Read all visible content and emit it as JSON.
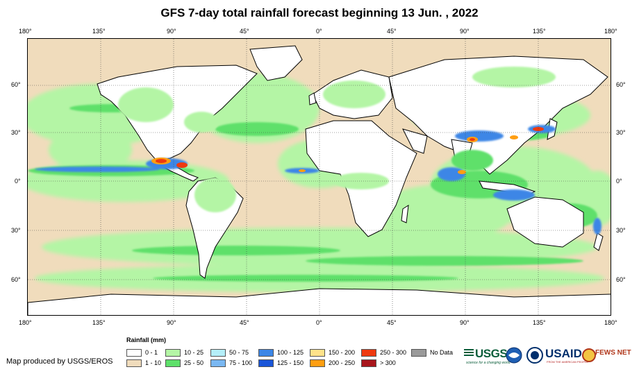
{
  "title": "GFS 7-day total rainfall forecast beginning 13 Jun. , 2022",
  "lon_ticks": [
    "180°",
    "135°",
    "90°",
    "45°",
    "0°",
    "45°",
    "90°",
    "135°",
    "180°"
  ],
  "lat_ticks": [
    "60°",
    "30°",
    "0°",
    "30°",
    "60°"
  ],
  "legend": {
    "title": "Rainfall (mm)",
    "items": [
      {
        "label": "0 - 1",
        "color": "#ffffff"
      },
      {
        "label": "1 - 10",
        "color": "#f0dcbc"
      },
      {
        "label": "10 - 25",
        "color": "#b4f5a5"
      },
      {
        "label": "25 - 50",
        "color": "#5ee06a"
      },
      {
        "label": "50 - 75",
        "color": "#b4eef8"
      },
      {
        "label": "75 - 100",
        "color": "#7ab8f2"
      },
      {
        "label": "100 - 125",
        "color": "#3c86e6"
      },
      {
        "label": "125 - 150",
        "color": "#1a55d8"
      },
      {
        "label": "150 - 200",
        "color": "#ffe28a"
      },
      {
        "label": "200 - 250",
        "color": "#ff9e12"
      },
      {
        "label": "250 - 300",
        "color": "#ee3a10"
      },
      {
        "label": "> 300",
        "color": "#a8161c"
      },
      {
        "label": "No Data",
        "color": "#9a9a9a"
      }
    ]
  },
  "credit": "Map produced by USGS/EROS",
  "logos": {
    "usgs": "USGS",
    "usgs_tagline": "science for a changing world",
    "usaid": "USAID",
    "usaid_tagline": "FROM THE AMERICAN PEOPLE",
    "fews": "FEWS NET"
  },
  "colors": {
    "ocean_dry": "#f0dcbc",
    "land": "#ffffff",
    "rain_light": "#b4f5a5",
    "rain_moderate": "#5ee06a",
    "rain_heavy": "#3c86e6",
    "rain_extreme": "#ee3a10"
  }
}
